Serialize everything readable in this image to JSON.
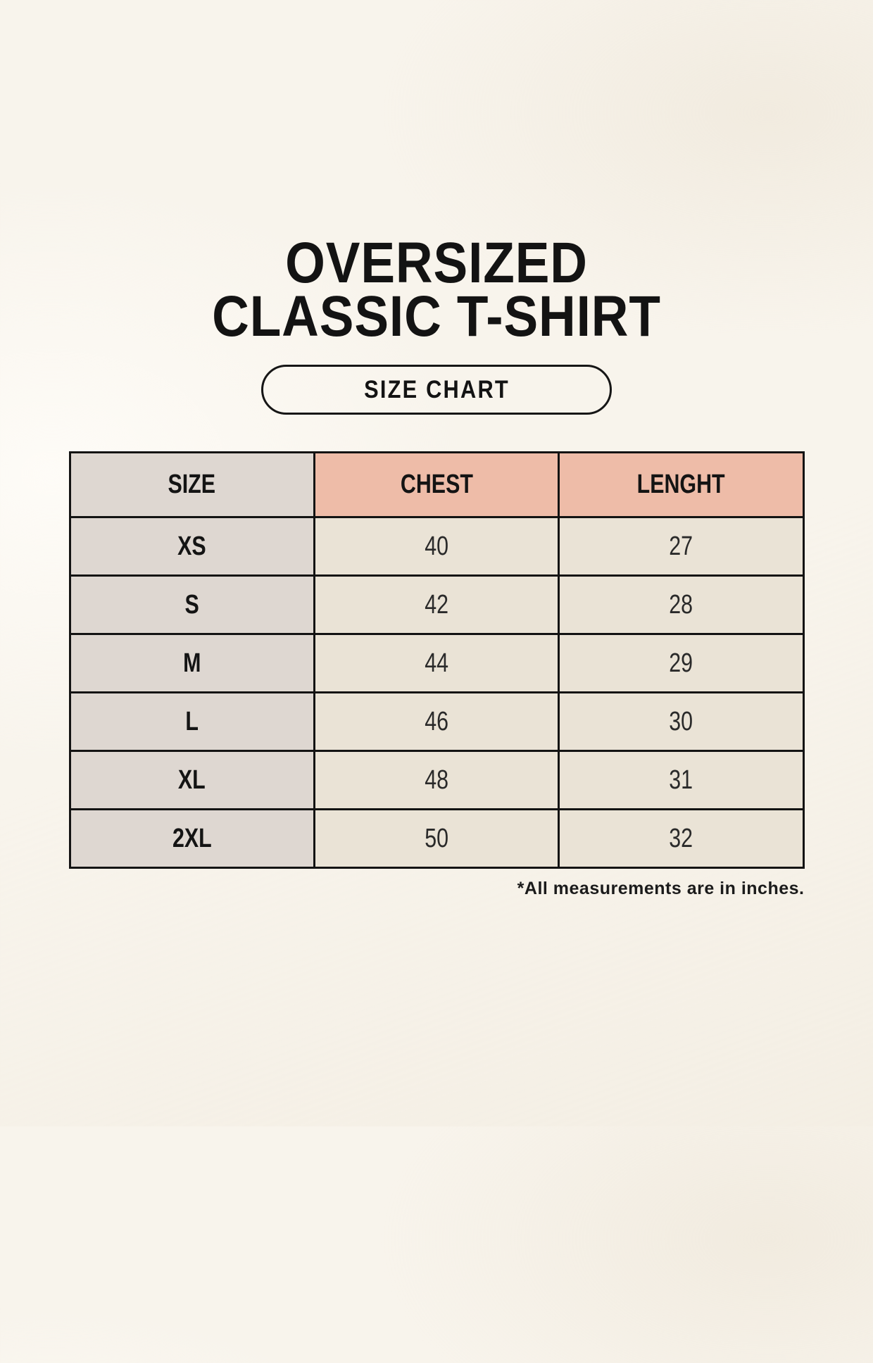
{
  "page": {
    "background_color": "#F8F4EC",
    "text_color": "#141414"
  },
  "title": {
    "line1": "OVERSIZED",
    "line2": "CLASSIC T-SHIRT"
  },
  "size_chart_button": {
    "label": "SIZE CHART",
    "border_color": "#161616"
  },
  "chart_data": {
    "type": "table",
    "title": "OVERSIZED CLASSIC T-SHIRT — SIZE CHART",
    "columns": [
      "SIZE",
      "CHEST",
      "LENGHT"
    ],
    "rows": [
      [
        "XS",
        "40",
        "27"
      ],
      [
        "S",
        "42",
        "28"
      ],
      [
        "M",
        "44",
        "29"
      ],
      [
        "L",
        "46",
        "30"
      ],
      [
        "XL",
        "48",
        "31"
      ],
      [
        "2XL",
        "50",
        "32"
      ]
    ],
    "units": "inches",
    "colors": {
      "size_column_bg": "#DED7D1",
      "measure_header_bg": "#EEBCA8",
      "value_cell_bg": "#EAE3D6",
      "border": "#131313"
    }
  },
  "footnote": "*All measurements are in inches."
}
